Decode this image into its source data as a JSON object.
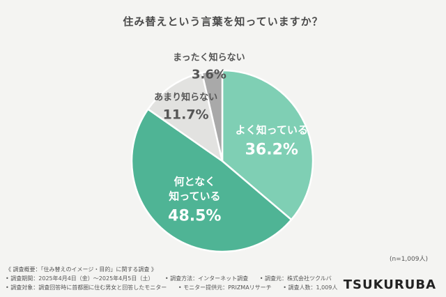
{
  "chart_data": {
    "type": "pie",
    "title": "住み替えという言葉を知っていますか？",
    "slices": [
      {
        "label": "よく知っている",
        "value": 36.2,
        "display": "36.2%",
        "color": "#7fcfb4",
        "text_color": "#ffffff"
      },
      {
        "label": "何となく\n知っている",
        "value": 48.5,
        "display": "48.5%",
        "color": "#4fb495",
        "text_color": "#ffffff"
      },
      {
        "label": "あまり知らない",
        "value": 11.7,
        "display": "11.7%",
        "color": "#e2e2e0",
        "text_color": "#555555"
      },
      {
        "label": "まったく知らない",
        "value": 3.6,
        "display": "3.6%",
        "color": "#a9a9a9",
        "text_color": "#555555"
      }
    ],
    "start_angle_deg": 0,
    "direction": "clockwise",
    "legend": "none"
  },
  "sample": "(n=1,009人)",
  "footer": {
    "line1": "《 調査概要：「住み替えのイメージ・目的」に関する調査 》",
    "period": "• 調査期間：2025年4月4日（金）〜2025年4月5日（土）",
    "method": "• 調査方法：インターネット調査",
    "org": "• 調査元：株式会社ツクルバ",
    "target": "• 調査対象：調査回答時に首都圏に住む男女と回答したモニター",
    "provider": "• モニター提供元：PRIZMAリサーチ",
    "count": "• 調査人数：1,009人"
  },
  "brand": "TSUKURUBA"
}
